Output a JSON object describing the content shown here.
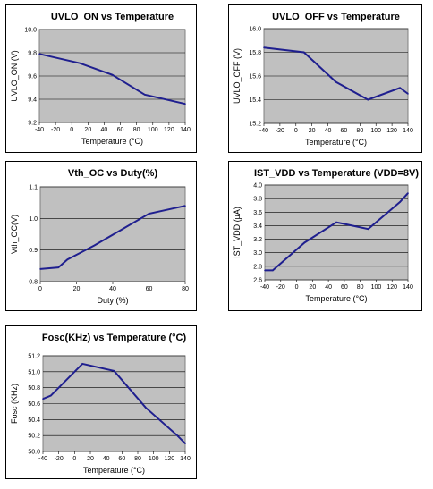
{
  "chart_data": [
    {
      "type": "line",
      "title": "UVLO_ON vs Temperature",
      "xlabel": "Temperature  (°C)",
      "ylabel": "UVLO_ON (V)",
      "x": [
        -40,
        10,
        50,
        90,
        140
      ],
      "series": [
        {
          "values": [
            9.79,
            9.71,
            9.61,
            9.44,
            9.36
          ]
        }
      ],
      "xlim": [
        -40,
        140
      ],
      "ylim": [
        9.2,
        10.0
      ],
      "xticks": [
        "-40",
        "-20",
        "0",
        "20",
        "40",
        "60",
        "80",
        "100",
        "120",
        "140"
      ],
      "yticks": [
        "9.2",
        "9.4",
        "9.6",
        "9.8",
        "10.0"
      ],
      "color": "#1f1f8f",
      "plot_bg": "#c0c0c0",
      "grid": true
    },
    {
      "type": "line",
      "title": "UVLO_OFF vs Temperature",
      "xlabel": "Temperature  (°C)",
      "ylabel": "UVLO_OFF (V)",
      "x": [
        -40,
        10,
        50,
        90,
        130,
        140
      ],
      "series": [
        {
          "values": [
            15.84,
            15.8,
            15.55,
            15.4,
            15.5,
            15.45
          ]
        }
      ],
      "xlim": [
        -40,
        140
      ],
      "ylim": [
        15.2,
        16.0
      ],
      "xticks": [
        "-40",
        "-20",
        "0",
        "20",
        "40",
        "60",
        "80",
        "100",
        "120",
        "140"
      ],
      "yticks": [
        "15.2",
        "15.4",
        "15.6",
        "15.8",
        "16.0"
      ],
      "color": "#1f1f8f",
      "plot_bg": "#c0c0c0",
      "grid": true
    },
    {
      "type": "line",
      "title": "Vth_OC vs Duty(%)",
      "xlabel": "Duty (%)",
      "ylabel": "Vth_OC(V)",
      "x": [
        0,
        10,
        15,
        20,
        30,
        45,
        60,
        80
      ],
      "series": [
        {
          "values": [
            0.84,
            0.845,
            0.87,
            0.885,
            0.915,
            0.965,
            1.015,
            1.04
          ]
        }
      ],
      "xlim": [
        0,
        80
      ],
      "ylim": [
        0.8,
        1.1
      ],
      "xticks": [
        "0",
        "20",
        "40",
        "60",
        "80"
      ],
      "yticks": [
        "0.8",
        "0.9",
        "1.0",
        "1.1"
      ],
      "color": "#1f1f8f",
      "plot_bg": "#c0c0c0",
      "grid": true
    },
    {
      "type": "line",
      "title": "IST_VDD vs Temperature  (VDD=8V)",
      "xlabel": "Temperature  (°C)",
      "ylabel": "IST_VDD  (μA)",
      "x": [
        -40,
        -30,
        10,
        50,
        90,
        130,
        140
      ],
      "series": [
        {
          "values": [
            2.74,
            2.74,
            3.15,
            3.45,
            3.35,
            3.75,
            3.88
          ]
        }
      ],
      "xlim": [
        -40,
        140
      ],
      "ylim": [
        2.6,
        4.0
      ],
      "xticks": [
        "-40",
        "-20",
        "0",
        "20",
        "40",
        "60",
        "80",
        "100",
        "120",
        "140"
      ],
      "yticks": [
        "2.6",
        "2.8",
        "3.0",
        "3.2",
        "3.4",
        "3.6",
        "3.8",
        "4.0"
      ],
      "color": "#1f1f8f",
      "plot_bg": "#c0c0c0",
      "grid": true
    },
    {
      "type": "line",
      "title": "Fosc(KHz) vs Temperature  (°C)",
      "xlabel": "Temperature  (°C)",
      "ylabel": "Fosc  (KHz)",
      "x": [
        -40,
        -30,
        10,
        50,
        90,
        130,
        140
      ],
      "series": [
        {
          "values": [
            50.66,
            50.7,
            51.1,
            51.01,
            50.55,
            50.2,
            50.1
          ]
        }
      ],
      "xlim": [
        -40,
        140
      ],
      "ylim": [
        50.0,
        51.2
      ],
      "xticks": [
        "-40",
        "-20",
        "0",
        "20",
        "40",
        "60",
        "80",
        "100",
        "120",
        "140"
      ],
      "yticks": [
        "50.0",
        "50.2",
        "50.4",
        "50.6",
        "50.8",
        "51.0",
        "51.2"
      ],
      "color": "#1f1f8f",
      "plot_bg": "#c0c0c0",
      "grid": true
    }
  ]
}
